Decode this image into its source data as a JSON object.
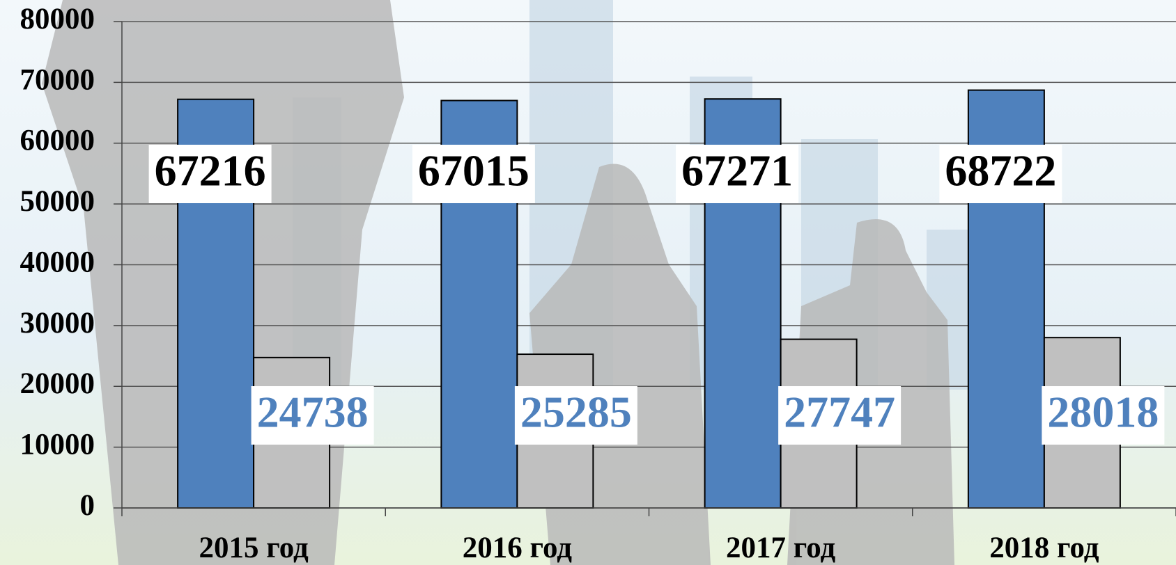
{
  "chart_data": {
    "type": "bar",
    "categories": [
      "2015 год",
      "2016 год",
      "2017 год",
      "2018 год"
    ],
    "series": [
      {
        "color": "#4f81bd",
        "values": [
          67216,
          67015,
          67271,
          68722
        ]
      },
      {
        "color": "#c0c0c0",
        "values": [
          24738,
          25285,
          27747,
          28018
        ]
      }
    ],
    "value_label_colors": [
      "#000000",
      "#4f81bd"
    ],
    "ylim": [
      0,
      80000
    ],
    "yticks": [
      0,
      10000,
      20000,
      30000,
      40000,
      50000,
      60000,
      70000,
      80000
    ],
    "grid": true
  }
}
